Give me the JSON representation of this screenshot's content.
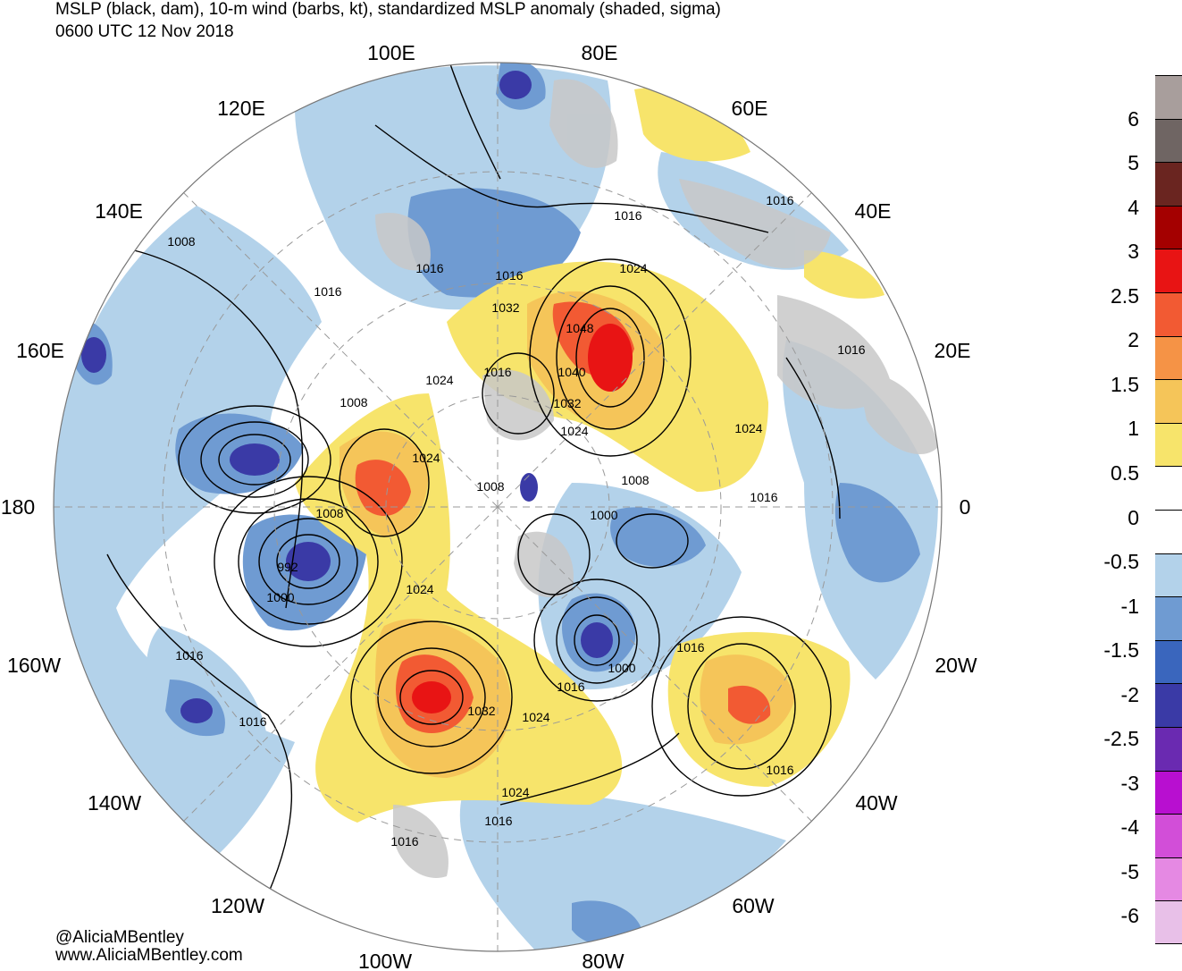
{
  "title": {
    "line1": "MSLP (black, dam), 10-m wind (barbs, kt), standardized MSLP anomaly (shaded, sigma)",
    "line2": "0600 UTC 12 Nov 2018"
  },
  "credits": {
    "twitter": "@AliciaMBentley",
    "website": "www.AliciaMBentley.com"
  },
  "longitude_labels": [
    "100E",
    "80E",
    "120E",
    "60E",
    "140E",
    "40E",
    "160E",
    "20E",
    "180",
    "0",
    "160W",
    "20W",
    "140W",
    "40W",
    "120W",
    "60W",
    "100W",
    "80W"
  ],
  "colorbar": {
    "labels": [
      "6",
      "5",
      "4",
      "3",
      "2.5",
      "2",
      "1.5",
      "1",
      "0.5",
      "0",
      "-0.5",
      "-1",
      "-1.5",
      "-2",
      "-2.5",
      "-3",
      "-4",
      "-5",
      "-6"
    ],
    "colors": [
      "#a89e9c",
      "#6f6563",
      "#6a2520",
      "#a40000",
      "#e81414",
      "#f25a33",
      "#f59346",
      "#f5c559",
      "#f7e46b",
      "#ffffff",
      "#ffffff",
      "#b3d2ea",
      "#6f9bd2",
      "#3a66bd",
      "#3a3aa6",
      "#6a2ab1",
      "#b80fd0",
      "#d24ed8",
      "#e589e3",
      "#e8c0e8"
    ]
  },
  "isobar_labels": [
    "1008",
    "1016",
    "1016",
    "1016",
    "1016",
    "1024",
    "1016",
    "1032",
    "1048",
    "1040",
    "1024",
    "1032",
    "1016",
    "1024",
    "1016",
    "1024",
    "1008",
    "1008",
    "1024",
    "1008",
    "1008",
    "1000",
    "992",
    "1000",
    "1024",
    "1016",
    "1016",
    "1000",
    "1016",
    "1016",
    "1032",
    "1024",
    "1024",
    "1016",
    "1016",
    "1016",
    "1016"
  ],
  "colors": {
    "land": "#c8c8c8",
    "ocean": "#ffffff",
    "isobar": "#000000",
    "coast": "#555555"
  }
}
